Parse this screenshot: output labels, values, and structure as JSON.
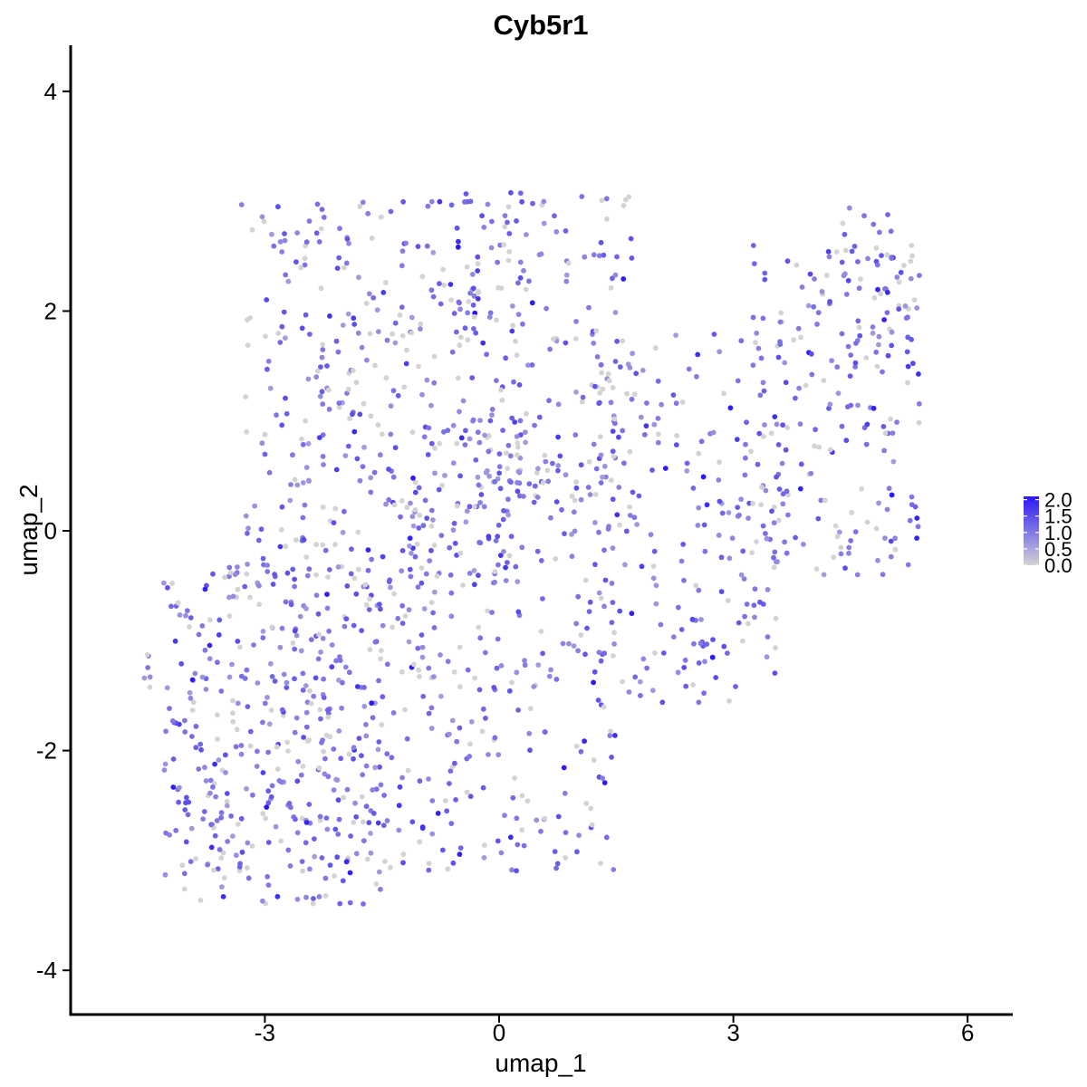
{
  "chart_data": {
    "type": "scatter",
    "title": "Cyb5r1",
    "xlabel": "umap_1",
    "ylabel": "umap_2",
    "xlim": [
      -5.4,
      6.6
    ],
    "ylim": [
      -4.4,
      4.4
    ],
    "xticks": [
      -3,
      0,
      3,
      6
    ],
    "yticks": [
      -4,
      -2,
      0,
      2,
      4
    ],
    "grid": false,
    "legend": {
      "placement": "right",
      "title": "",
      "ticks": [
        "2.0",
        "1.5",
        "1.0",
        "0.5",
        "0.0"
      ],
      "range": [
        0,
        2.1
      ]
    },
    "colors": {
      "low": "#d3d3d3",
      "high": "#2a17f5"
    },
    "point_count": 1700,
    "region_description": "Cells cover a broad region from umap_1 -4.7 to 5.4 and umap_2 -3.5 to 3.1; lower-left lobe, upper-middle lobe, and upper-right arm",
    "point_regions": [
      {
        "x": [
          -4.6,
          -4.4
        ],
        "y": [
          -1.5,
          -1.1
        ],
        "n": 6
      },
      {
        "x": [
          -4.3,
          -1.5
        ],
        "y": [
          -3.4,
          -0.3
        ],
        "n": 420
      },
      {
        "x": [
          -3.3,
          0.3
        ],
        "y": [
          -0.6,
          3.0
        ],
        "n": 360
      },
      {
        "x": [
          -1.5,
          1.5
        ],
        "y": [
          -3.1,
          0.9
        ],
        "n": 330
      },
      {
        "x": [
          -0.6,
          1.7
        ],
        "y": [
          0.2,
          3.1
        ],
        "n": 160
      },
      {
        "x": [
          1.2,
          3.6
        ],
        "y": [
          -1.6,
          1.8
        ],
        "n": 190
      },
      {
        "x": [
          3.2,
          5.4
        ],
        "y": [
          -0.4,
          2.6
        ],
        "n": 200
      },
      {
        "x": [
          4.3,
          5.3
        ],
        "y": [
          1.7,
          3.0
        ],
        "n": 34
      }
    ]
  }
}
